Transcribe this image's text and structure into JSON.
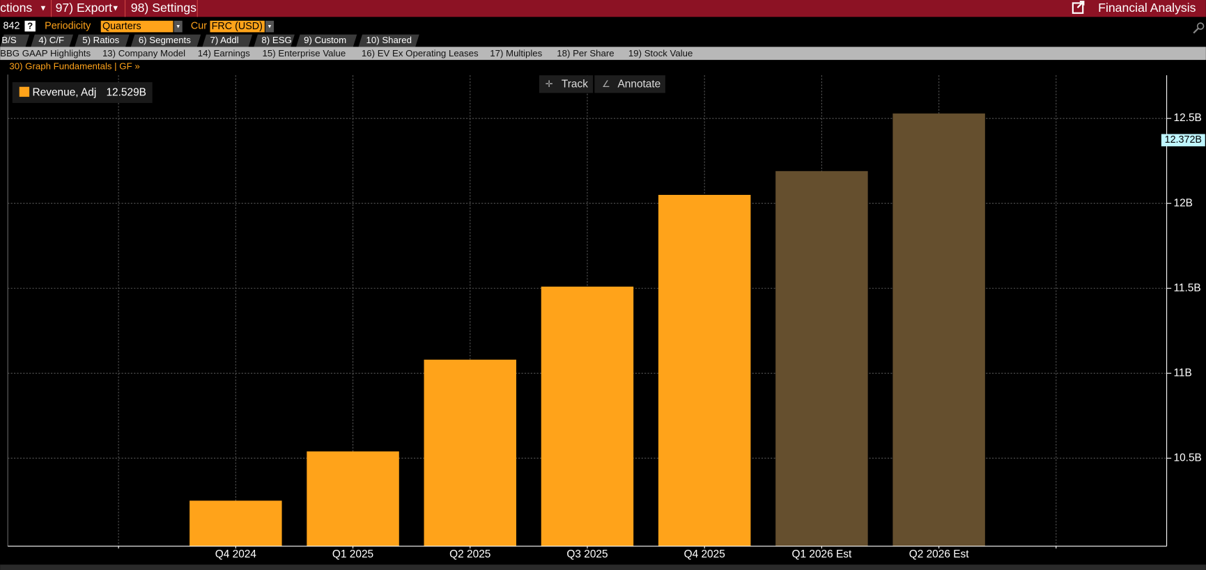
{
  "toolbar": {
    "menu": [
      "ctions",
      "97) Export",
      "98) Settings"
    ],
    "app_title": "Financial Analysis"
  },
  "controls": {
    "ticker_suffix": "842",
    "help": "?",
    "periodicity_label": "Periodicity",
    "periodicity": "Quarters",
    "currency_label": "Cur",
    "currency": "FRC (USD)"
  },
  "tabs": [
    "B/S",
    "4) C/F",
    "5) Ratios",
    "6) Segments",
    "7) Addl",
    "8) ESG",
    "9) Custom",
    "10) Shared"
  ],
  "subtabs": [
    "BBG GAAP Highlights",
    "13) Company Model",
    "14) Earnings",
    "15) Enterprise Value",
    "16) EV Ex Operating Leases",
    "17) Multiples",
    "18) Per Share",
    "19) Stock Value"
  ],
  "breadcrumb": "30) Graph Fundamentals | GF »",
  "chart_tools": [
    "Track",
    "Annotate"
  ],
  "chart_data": {
    "type": "bar",
    "categories": [
      null,
      "Q4 2024",
      "Q1 2025",
      "Q2 2025",
      "Q3 2025",
      "Q4 2025",
      "Q1 2026 Est",
      "Q2 2026 Est",
      null
    ],
    "series": [
      {
        "name": "Revenue, Adj",
        "values": [
          null,
          10.25,
          10.54,
          11.08,
          11.51,
          12.05,
          12.19,
          12.529,
          null
        ],
        "colors": [
          null,
          "#ffa31a",
          "#ffa31a",
          "#ffa31a",
          "#ffa31a",
          "#ffa31a",
          "#654f2e",
          "#654f2e",
          null
        ],
        "legend_color": "#ffa31a"
      }
    ],
    "legend_value": {
      "value": 12.529,
      "label": "12.529B"
    },
    "marker": {
      "value": 12.372,
      "label": "12.372B"
    },
    "ylim": [
      9.982,
      12.754
    ],
    "yticks": [
      {
        "value": 10.5,
        "label": "10.5B"
      },
      {
        "value": 11,
        "label": "11B"
      },
      {
        "value": 11.5,
        "label": "11.5B"
      },
      {
        "value": 12,
        "label": "12B"
      },
      {
        "value": 12.5,
        "label": "12.5B"
      }
    ],
    "grid": true
  }
}
